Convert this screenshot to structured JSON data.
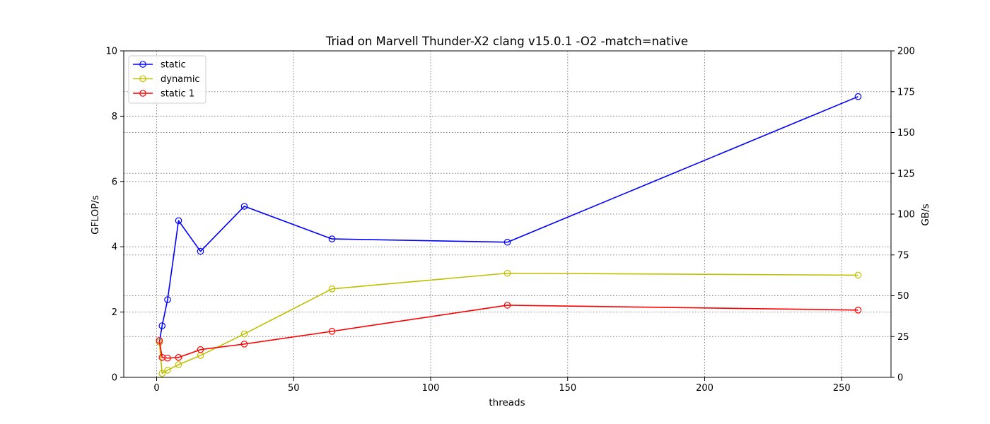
{
  "chart_data": {
    "type": "line",
    "title": "Triad on Marvell Thunder-X2 clang v15.0.1 -O2 -match=native",
    "xlabel": "threads",
    "ylabel": "GFLOP/s",
    "y2label": "GB/s",
    "xlim": [
      -12,
      268
    ],
    "ylim": [
      0,
      10
    ],
    "y2lim": [
      0,
      200
    ],
    "xticks": [
      0,
      50,
      100,
      150,
      200,
      250
    ],
    "yticks": [
      0,
      2,
      4,
      6,
      8,
      10
    ],
    "y2ticks": [
      0,
      25,
      50,
      75,
      100,
      125,
      150,
      175,
      200
    ],
    "grid": true,
    "legend_position": "top-left",
    "x": [
      1,
      2,
      4,
      8,
      16,
      32,
      64,
      128,
      256
    ],
    "series": [
      {
        "name": "static",
        "color": "#0000ff",
        "values": [
          1.08,
          1.58,
          2.38,
          4.8,
          3.86,
          5.24,
          4.24,
          4.14,
          8.6
        ]
      },
      {
        "name": "dynamic",
        "color": "#bfbf00",
        "values": [
          1.08,
          0.12,
          0.22,
          0.39,
          0.67,
          1.33,
          2.71,
          3.19,
          3.13
        ]
      },
      {
        "name": "static 1",
        "color": "#ff0000",
        "values": [
          1.13,
          0.61,
          0.59,
          0.61,
          0.85,
          1.02,
          1.41,
          2.21,
          2.06
        ]
      }
    ]
  }
}
